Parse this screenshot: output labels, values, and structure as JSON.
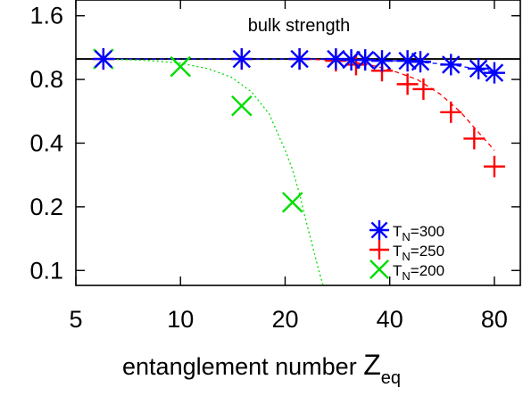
{
  "chart_data": {
    "type": "scatter",
    "title": "",
    "xlabel": "entanglement number",
    "xlabel_symbol": "Z",
    "xlabel_sub": "eq",
    "ylabel": "",
    "x_scale": "log",
    "y_scale": "log",
    "xlim": [
      5,
      95
    ],
    "ylim": [
      0.085,
      1.9
    ],
    "x_ticks": [
      5,
      10,
      20,
      40,
      80
    ],
    "x_tick_labels": [
      "5",
      "10",
      "20",
      "40",
      "80"
    ],
    "y_ticks": [
      0.1,
      0.2,
      0.4,
      0.8,
      1.6
    ],
    "y_tick_labels": [
      "0.1",
      "0.2",
      "0.4",
      "0.8",
      "1.6"
    ],
    "grid": false,
    "legend_position": "bottom-right",
    "reference_line": {
      "label": "bulk strength",
      "y": 1.0,
      "color": "#000000"
    },
    "series": [
      {
        "name_prefix": "T",
        "name_sub": "N",
        "name_suffix": "=300",
        "color": "#0000ff",
        "marker": "asterisk",
        "x": [
          6,
          15,
          22,
          28,
          31,
          34,
          38,
          45,
          49,
          60,
          72,
          80
        ],
        "y": [
          1.0,
          1.0,
          1.0,
          1.0,
          0.99,
          0.99,
          0.98,
          0.98,
          0.97,
          0.94,
          0.9,
          0.86
        ],
        "fit_x": [
          6,
          15,
          22,
          28,
          34,
          45,
          60,
          80
        ],
        "fit_y": [
          1.0,
          1.0,
          1.0,
          0.995,
          0.99,
          0.975,
          0.94,
          0.87
        ]
      },
      {
        "name_prefix": "T",
        "name_sub": "N",
        "name_suffix": "=250",
        "color": "#ff0000",
        "marker": "plus",
        "x": [
          6,
          15,
          22,
          28,
          32,
          38,
          45,
          50,
          60,
          70,
          80
        ],
        "y": [
          1.0,
          1.0,
          1.0,
          0.98,
          0.94,
          0.88,
          0.76,
          0.72,
          0.56,
          0.42,
          0.31
        ],
        "fit_x": [
          22,
          28,
          34,
          40,
          48,
          56,
          64,
          72,
          80
        ],
        "fit_y": [
          1.0,
          0.985,
          0.95,
          0.89,
          0.8,
          0.68,
          0.56,
          0.45,
          0.37
        ]
      },
      {
        "name_prefix": "T",
        "name_sub": "N",
        "name_suffix": "=200",
        "color": "#00dd00",
        "marker": "cross",
        "x": [
          6,
          10,
          15,
          21
        ],
        "y": [
          1.0,
          0.92,
          0.6,
          0.21
        ],
        "fit_x": [
          6,
          8,
          10,
          12,
          14,
          16,
          18,
          20,
          21,
          22,
          23,
          24,
          25,
          26
        ],
        "fit_y": [
          1.0,
          0.985,
          0.955,
          0.9,
          0.82,
          0.7,
          0.55,
          0.37,
          0.3,
          0.23,
          0.17,
          0.13,
          0.1,
          0.08
        ]
      }
    ]
  }
}
